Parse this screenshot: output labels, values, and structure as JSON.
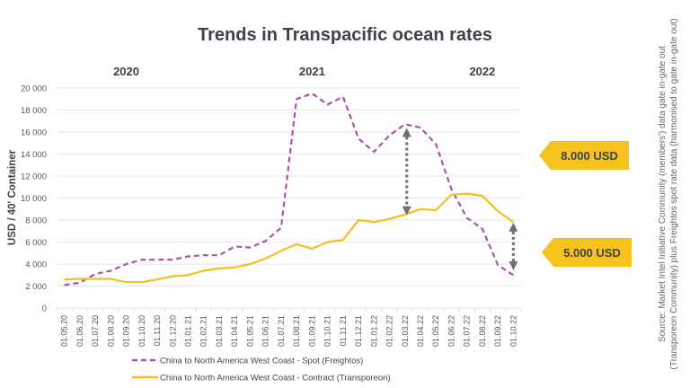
{
  "chart_data": {
    "type": "line",
    "title": "Trends in Transpacific ocean rates",
    "xlabel": "",
    "ylabel": "USD / 40' Container",
    "ylim": [
      0,
      20000
    ],
    "yticks": [
      0,
      2000,
      4000,
      6000,
      8000,
      10000,
      12000,
      14000,
      16000,
      18000,
      20000
    ],
    "ytick_labels": [
      "0",
      "2 000",
      "4 000",
      "6 000",
      "8 000",
      "10 000",
      "12 000",
      "14 000",
      "16 000",
      "18 000",
      "20 000"
    ],
    "grid": true,
    "year_labels": [
      {
        "label": "2020",
        "at_category": "01.09.20"
      },
      {
        "label": "2021",
        "at_category": "01.09.21"
      },
      {
        "label": "2022",
        "at_category": "01.08.22"
      }
    ],
    "categories": [
      "01.05.20",
      "01.06.20",
      "01.07.20",
      "01.08.20",
      "01.09.20",
      "01.10.20",
      "01.11.20",
      "01.12.20",
      "01.01.21",
      "01.02.21",
      "01.03.21",
      "01.04.21",
      "01.05.21",
      "01.06.21",
      "01.07.21",
      "01.08.21",
      "01.09.21",
      "01.10.21",
      "01.11.21",
      "01.12.21",
      "01.01.22",
      "01.02.22",
      "01.03.22",
      "01.04.22",
      "01.05.22",
      "01.06.22",
      "01.07.22",
      "01.08.22",
      "01.09.22",
      "01.10.22"
    ],
    "series": [
      {
        "name": "China to North America West Coast - Spot (Freightos)",
        "color": "#a855a6",
        "style": "dashed",
        "values": [
          2100,
          2300,
          3100,
          3400,
          4000,
          4400,
          4400,
          4400,
          4700,
          4800,
          4800,
          5600,
          5500,
          6100,
          7300,
          19000,
          19500,
          18500,
          19200,
          15400,
          14200,
          15700,
          16700,
          16400,
          14900,
          10800,
          8200,
          7200,
          3900,
          3000
        ]
      },
      {
        "name": "China to North America West Coast - Contract (Transporeon)",
        "color": "#f5bd1f",
        "style": "solid",
        "values": [
          2600,
          2650,
          2650,
          2650,
          2350,
          2350,
          2600,
          2900,
          3000,
          3400,
          3600,
          3700,
          4000,
          4500,
          5200,
          5800,
          5400,
          6000,
          6200,
          8000,
          7800,
          8100,
          8500,
          9000,
          8900,
          10300,
          10400,
          10200,
          8800,
          7800
        ]
      }
    ],
    "annotations": [
      {
        "type": "double-arrow",
        "category": "01.03.22",
        "from": 8600,
        "to": 16200,
        "label": "8.000 USD"
      },
      {
        "type": "double-arrow",
        "category": "01.10.22",
        "from": 3600,
        "to": 7600,
        "label": "5.000 USD"
      }
    ],
    "legend_position": "bottom",
    "source": [
      "Source: Market Intel Initiative Community (members') data gate in-gate out",
      "(Transporeon Community) plus Freightos spot rate data (harmonised to gate in-gate out)"
    ]
  },
  "colors": {
    "badge": "#f5c21f",
    "arrow": "#6d6e71",
    "text": "#3f4148"
  }
}
